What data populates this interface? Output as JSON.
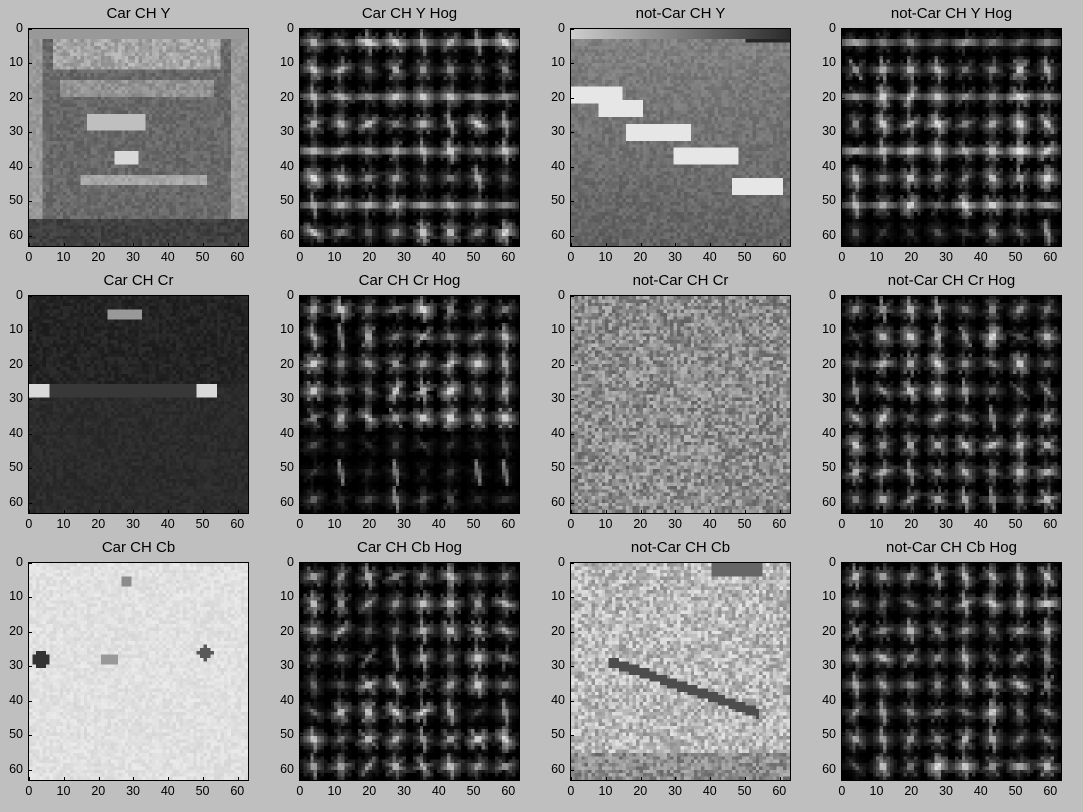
{
  "figure": {
    "background": "#bfbfbf"
  },
  "chart_data": [
    {
      "type": "heatmap",
      "title": "Car CH Y",
      "kind": "image",
      "content": "car-y",
      "xlim": [
        0,
        63
      ],
      "ylim": [
        63,
        0
      ],
      "xticks": [
        0,
        10,
        20,
        30,
        40,
        50,
        60
      ],
      "yticks": [
        0,
        10,
        20,
        30,
        40,
        50,
        60
      ]
    },
    {
      "type": "heatmap",
      "title": "Car CH Y Hog",
      "kind": "hog",
      "content": "car-y",
      "xlim": [
        0,
        63
      ],
      "ylim": [
        63,
        0
      ],
      "xticks": [
        0,
        10,
        20,
        30,
        40,
        50,
        60
      ],
      "yticks": [
        0,
        10,
        20,
        30,
        40,
        50,
        60
      ]
    },
    {
      "type": "heatmap",
      "title": "not-Car CH Y",
      "kind": "image",
      "content": "road-y",
      "xlim": [
        0,
        63
      ],
      "ylim": [
        63,
        0
      ],
      "xticks": [
        0,
        10,
        20,
        30,
        40,
        50,
        60
      ],
      "yticks": [
        0,
        10,
        20,
        30,
        40,
        50,
        60
      ]
    },
    {
      "type": "heatmap",
      "title": "not-Car CH Y Hog",
      "kind": "hog",
      "content": "road-y",
      "xlim": [
        0,
        63
      ],
      "ylim": [
        63,
        0
      ],
      "xticks": [
        0,
        10,
        20,
        30,
        40,
        50,
        60
      ],
      "yticks": [
        0,
        10,
        20,
        30,
        40,
        50,
        60
      ]
    },
    {
      "type": "heatmap",
      "title": "Car CH Cr",
      "kind": "image",
      "content": "car-cr",
      "xlim": [
        0,
        63
      ],
      "ylim": [
        63,
        0
      ],
      "xticks": [
        0,
        10,
        20,
        30,
        40,
        50,
        60
      ],
      "yticks": [
        0,
        10,
        20,
        30,
        40,
        50,
        60
      ]
    },
    {
      "type": "heatmap",
      "title": "Car CH Cr Hog",
      "kind": "hog",
      "content": "car-cr",
      "xlim": [
        0,
        63
      ],
      "ylim": [
        63,
        0
      ],
      "xticks": [
        0,
        10,
        20,
        30,
        40,
        50,
        60
      ],
      "yticks": [
        0,
        10,
        20,
        30,
        40,
        50,
        60
      ]
    },
    {
      "type": "heatmap",
      "title": "not-Car CH Cr",
      "kind": "image",
      "content": "noise-cr",
      "xlim": [
        0,
        63
      ],
      "ylim": [
        63,
        0
      ],
      "xticks": [
        0,
        10,
        20,
        30,
        40,
        50,
        60
      ],
      "yticks": [
        0,
        10,
        20,
        30,
        40,
        50,
        60
      ]
    },
    {
      "type": "heatmap",
      "title": "not-Car CH Cr Hog",
      "kind": "hog",
      "content": "noise-cr",
      "xlim": [
        0,
        63
      ],
      "ylim": [
        63,
        0
      ],
      "xticks": [
        0,
        10,
        20,
        30,
        40,
        50,
        60
      ],
      "yticks": [
        0,
        10,
        20,
        30,
        40,
        50,
        60
      ]
    },
    {
      "type": "heatmap",
      "title": "Car CH Cb",
      "kind": "image",
      "content": "car-cb",
      "xlim": [
        0,
        63
      ],
      "ylim": [
        63,
        0
      ],
      "xticks": [
        0,
        10,
        20,
        30,
        40,
        50,
        60
      ],
      "yticks": [
        0,
        10,
        20,
        30,
        40,
        50,
        60
      ]
    },
    {
      "type": "heatmap",
      "title": "Car CH Cb Hog",
      "kind": "hog",
      "content": "car-cb",
      "xlim": [
        0,
        63
      ],
      "ylim": [
        63,
        0
      ],
      "xticks": [
        0,
        10,
        20,
        30,
        40,
        50,
        60
      ],
      "yticks": [
        0,
        10,
        20,
        30,
        40,
        50,
        60
      ]
    },
    {
      "type": "heatmap",
      "title": "not-Car CH Cb",
      "kind": "image",
      "content": "noise-cb",
      "xlim": [
        0,
        63
      ],
      "ylim": [
        63,
        0
      ],
      "xticks": [
        0,
        10,
        20,
        30,
        40,
        50,
        60
      ],
      "yticks": [
        0,
        10,
        20,
        30,
        40,
        50,
        60
      ]
    },
    {
      "type": "heatmap",
      "title": "not-Car CH Cb Hog",
      "kind": "hog",
      "content": "noise-cb",
      "xlim": [
        0,
        63
      ],
      "ylim": [
        63,
        0
      ],
      "xticks": [
        0,
        10,
        20,
        30,
        40,
        50,
        60
      ],
      "yticks": [
        0,
        10,
        20,
        30,
        40,
        50,
        60
      ]
    }
  ]
}
